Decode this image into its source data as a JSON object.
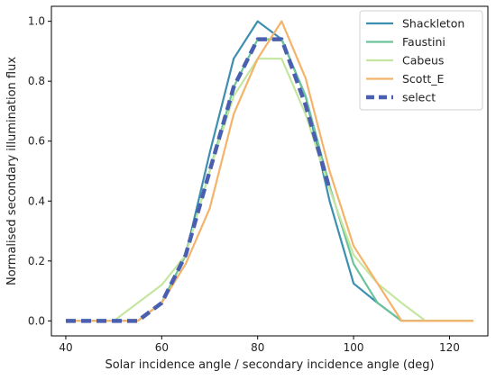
{
  "chart_data": {
    "type": "line",
    "title": "",
    "xlabel": "Solar incidence angle / secondary incidence angle (deg)",
    "ylabel": "Normalised secondary illumination flux",
    "xlim": [
      37,
      128
    ],
    "ylim": [
      -0.05,
      1.05
    ],
    "xticks": [
      40,
      60,
      80,
      100,
      120
    ],
    "yticks": [
      0.0,
      0.2,
      0.4,
      0.6,
      0.8,
      1.0
    ],
    "legend_position": "top-right",
    "grid": false,
    "series": [
      {
        "name": "Shackleton",
        "color": "#3d8fb0",
        "dashed": false,
        "x": [
          40,
          45,
          50,
          55,
          60,
          65,
          70,
          75,
          80,
          85,
          90,
          95,
          100,
          105,
          110,
          115,
          120,
          125
        ],
        "y": [
          0,
          0,
          0,
          0,
          0.06,
          0.22,
          0.56,
          0.875,
          1.0,
          0.94,
          0.75,
          0.4,
          0.125,
          0.06,
          0,
          0,
          0,
          0
        ]
      },
      {
        "name": "Faustini",
        "color": "#6cc49a",
        "dashed": false,
        "x": [
          40,
          45,
          50,
          55,
          60,
          65,
          70,
          75,
          80,
          85,
          90,
          95,
          100,
          105,
          110,
          115,
          120,
          125
        ],
        "y": [
          0,
          0,
          0,
          0,
          0.06,
          0.22,
          0.5,
          0.78,
          0.94,
          0.94,
          0.75,
          0.45,
          0.19,
          0.06,
          0,
          0,
          0,
          0
        ]
      },
      {
        "name": "Cabeus",
        "color": "#c5e6a0",
        "dashed": false,
        "x": [
          40,
          45,
          50,
          55,
          60,
          65,
          70,
          75,
          80,
          85,
          90,
          95,
          100,
          105,
          110,
          115,
          120,
          125
        ],
        "y": [
          0,
          0,
          0,
          0.06,
          0.12,
          0.22,
          0.5,
          0.75,
          0.875,
          0.875,
          0.69,
          0.44,
          0.22,
          0.125,
          0.06,
          0,
          0,
          0
        ]
      },
      {
        "name": "Scott_E",
        "color": "#f4b36a",
        "dashed": false,
        "x": [
          40,
          45,
          50,
          55,
          60,
          65,
          70,
          75,
          80,
          85,
          90,
          95,
          100,
          105,
          110,
          115,
          120,
          125
        ],
        "y": [
          0,
          0,
          0,
          0,
          0.06,
          0.19,
          0.375,
          0.69,
          0.875,
          1.0,
          0.81,
          0.5,
          0.25,
          0.125,
          0,
          0,
          0,
          0
        ]
      },
      {
        "name": "select",
        "color": "#4a5fb0",
        "dashed": true,
        "x": [
          40,
          45,
          50,
          55,
          60,
          65,
          70,
          75,
          80,
          85,
          90,
          95
        ],
        "y": [
          0,
          0,
          0,
          0,
          0.06,
          0.22,
          0.5,
          0.78,
          0.94,
          0.94,
          0.72,
          0.44
        ]
      }
    ]
  }
}
